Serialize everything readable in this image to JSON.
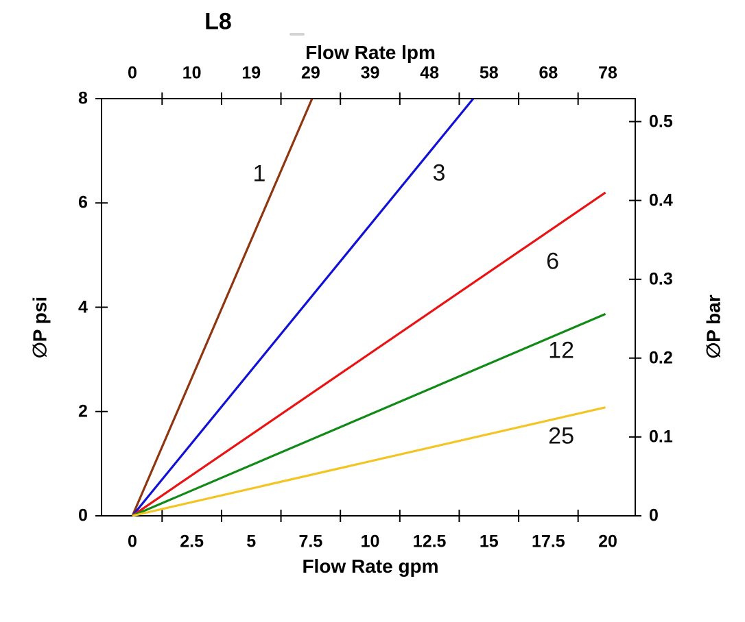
{
  "chart_data": {
    "type": "line",
    "title": "L8",
    "xlabel_top": "Flow Rate lpm",
    "xlabel_bottom": "Flow Rate gpm",
    "ylabel_left": "∅P psi",
    "ylabel_right": "∅P bar",
    "grid": false,
    "legend_position": "labels-next-to-curves",
    "x_axis_bottom": {
      "unit": "gpm",
      "range": [
        0,
        20
      ],
      "tick_labels": [
        "0",
        "2.5",
        "5",
        "7.5",
        "10",
        "12.5",
        "15",
        "17.5",
        "20"
      ],
      "tick_values": [
        0,
        2.5,
        5,
        7.5,
        10,
        12.5,
        15,
        17.5,
        20
      ]
    },
    "x_axis_top": {
      "unit": "lpm",
      "tick_labels": [
        "0",
        "10",
        "19",
        "29",
        "39",
        "48",
        "58",
        "68",
        "78"
      ],
      "tick_values": [
        0,
        10,
        19,
        29,
        39,
        48,
        58,
        68,
        78
      ]
    },
    "y_axis_left": {
      "unit": "psi",
      "range": [
        0,
        8
      ],
      "tick_labels": [
        "8",
        "6",
        "4",
        "2",
        "0"
      ],
      "tick_values": [
        8,
        6,
        4,
        2,
        0
      ]
    },
    "y_axis_right": {
      "unit": "bar",
      "range": [
        0,
        0.53
      ],
      "tick_labels": [
        "0.5",
        "0.4",
        "0.3",
        "0.2",
        "0.1",
        "0"
      ],
      "tick_values": [
        0.5,
        0.4,
        0.3,
        0.2,
        0.1,
        0
      ]
    },
    "series": [
      {
        "name": "1",
        "color": "#8f3511",
        "points_gpm_psi": [
          [
            0,
            0
          ],
          [
            7.56,
            8
          ]
        ],
        "label_pos_gpm_psi": [
          5.34,
          6.55
        ]
      },
      {
        "name": "3",
        "color": "#1111d6",
        "points_gpm_psi": [
          [
            0,
            0
          ],
          [
            14.34,
            8
          ]
        ],
        "label_pos_gpm_psi": [
          12.9,
          6.57
        ]
      },
      {
        "name": "6",
        "color": "#e81414",
        "points_gpm_psi": [
          [
            0,
            0
          ],
          [
            19.9,
            6.2
          ]
        ],
        "label_pos_gpm_psi": [
          17.68,
          4.88
        ]
      },
      {
        "name": "12",
        "color": "#128a18",
        "points_gpm_psi": [
          [
            0,
            0
          ],
          [
            19.9,
            3.87
          ]
        ],
        "label_pos_gpm_psi": [
          18.04,
          3.17
        ]
      },
      {
        "name": "25",
        "color": "#f3c524",
        "points_gpm_psi": [
          [
            0,
            0
          ],
          [
            19.9,
            2.08
          ]
        ],
        "label_pos_gpm_psi": [
          18.04,
          1.53
        ]
      }
    ],
    "axis_color": "#000000",
    "text_color": "#000000"
  }
}
